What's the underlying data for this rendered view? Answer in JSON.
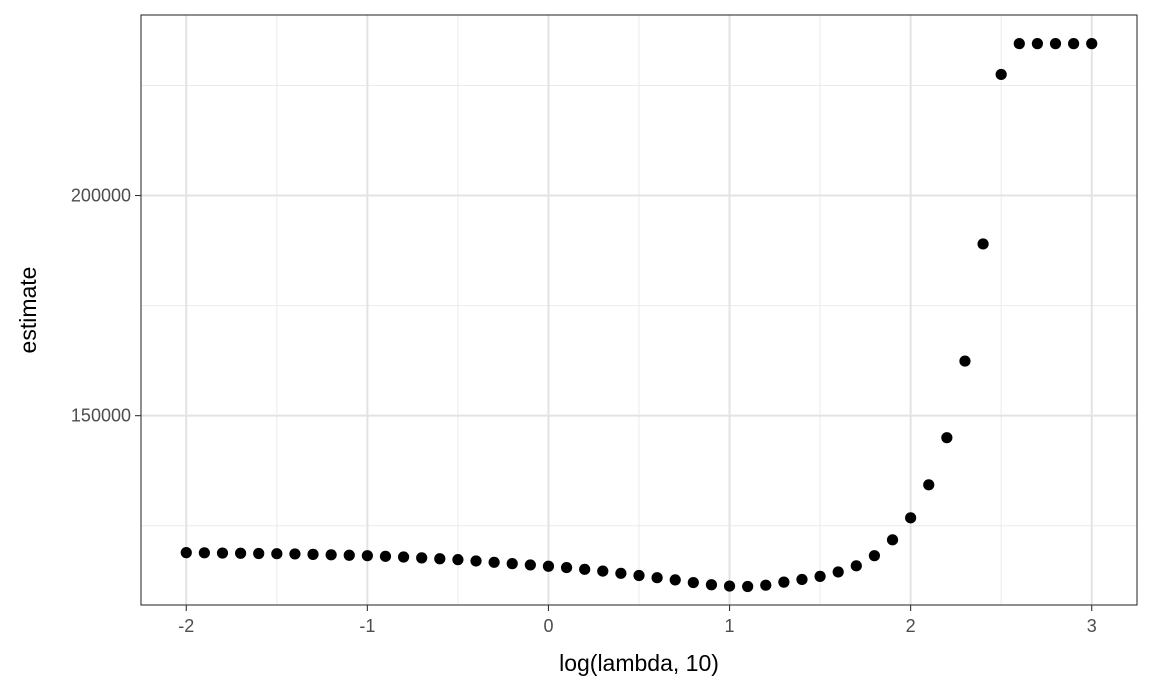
{
  "chart_data": {
    "type": "scatter",
    "title": "",
    "xlabel": "log(lambda, 10)",
    "ylabel": "estimate",
    "xlim": [
      -2.25,
      3.25
    ],
    "ylim": [
      107000,
      241000
    ],
    "x_ticks": [
      -2,
      -1,
      0,
      1,
      2,
      3
    ],
    "x_tick_labels": [
      "-2",
      "-1",
      "0",
      "1",
      "2",
      "3"
    ],
    "y_ticks": [
      150000,
      200000
    ],
    "y_tick_labels": [
      "150000",
      "200000"
    ],
    "y_minor_ticks": [
      125000,
      175000,
      225000
    ],
    "x_minor_ticks": [
      -1.5,
      -0.5,
      0.5,
      1.5,
      2.5
    ],
    "grid": true,
    "theme": "bw",
    "point_color": "#000000",
    "points": [
      {
        "x": -2.0,
        "y": 118900
      },
      {
        "x": -1.9,
        "y": 118850
      },
      {
        "x": -1.8,
        "y": 118800
      },
      {
        "x": -1.7,
        "y": 118750
      },
      {
        "x": -1.6,
        "y": 118700
      },
      {
        "x": -1.5,
        "y": 118650
      },
      {
        "x": -1.4,
        "y": 118600
      },
      {
        "x": -1.3,
        "y": 118500
      },
      {
        "x": -1.2,
        "y": 118400
      },
      {
        "x": -1.1,
        "y": 118300
      },
      {
        "x": -1.0,
        "y": 118200
      },
      {
        "x": -0.9,
        "y": 118050
      },
      {
        "x": -0.8,
        "y": 117900
      },
      {
        "x": -0.7,
        "y": 117700
      },
      {
        "x": -0.6,
        "y": 117500
      },
      {
        "x": -0.5,
        "y": 117300
      },
      {
        "x": -0.4,
        "y": 117000
      },
      {
        "x": -0.3,
        "y": 116700
      },
      {
        "x": -0.2,
        "y": 116400
      },
      {
        "x": -0.1,
        "y": 116100
      },
      {
        "x": 0.0,
        "y": 115800
      },
      {
        "x": 0.1,
        "y": 115500
      },
      {
        "x": 0.2,
        "y": 115100
      },
      {
        "x": 0.3,
        "y": 114700
      },
      {
        "x": 0.4,
        "y": 114200
      },
      {
        "x": 0.5,
        "y": 113700
      },
      {
        "x": 0.6,
        "y": 113200
      },
      {
        "x": 0.7,
        "y": 112700
      },
      {
        "x": 0.8,
        "y": 112100
      },
      {
        "x": 0.9,
        "y": 111600
      },
      {
        "x": 1.0,
        "y": 111300
      },
      {
        "x": 1.1,
        "y": 111200
      },
      {
        "x": 1.2,
        "y": 111500
      },
      {
        "x": 1.3,
        "y": 112200
      },
      {
        "x": 1.4,
        "y": 112800
      },
      {
        "x": 1.5,
        "y": 113500
      },
      {
        "x": 1.6,
        "y": 114500
      },
      {
        "x": 1.7,
        "y": 115900
      },
      {
        "x": 1.8,
        "y": 118200
      },
      {
        "x": 1.9,
        "y": 121800
      },
      {
        "x": 2.0,
        "y": 126800
      },
      {
        "x": 2.1,
        "y": 134300
      },
      {
        "x": 2.2,
        "y": 145000
      },
      {
        "x": 2.3,
        "y": 162400
      },
      {
        "x": 2.4,
        "y": 189000
      },
      {
        "x": 2.5,
        "y": 227500
      },
      {
        "x": 2.6,
        "y": 234500
      },
      {
        "x": 2.7,
        "y": 234500
      },
      {
        "x": 2.8,
        "y": 234500
      },
      {
        "x": 2.9,
        "y": 234500
      },
      {
        "x": 3.0,
        "y": 234500
      }
    ]
  }
}
